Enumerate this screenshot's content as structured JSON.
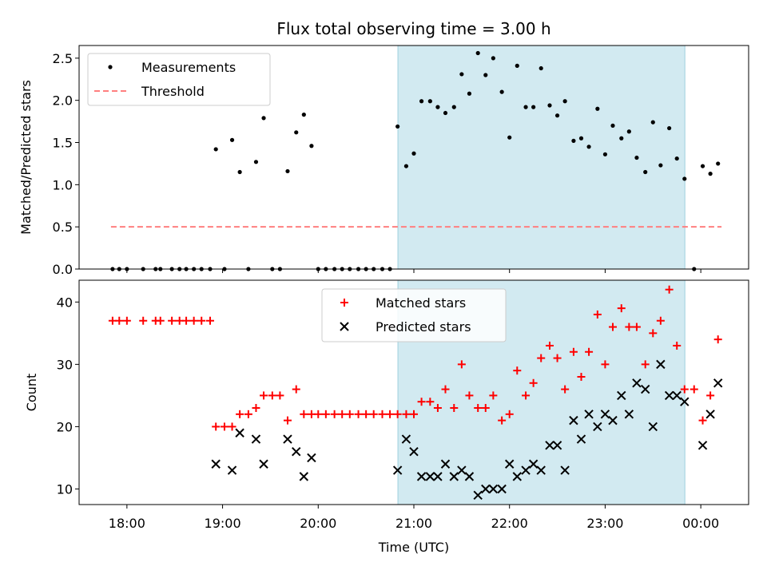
{
  "chart_data": [
    {
      "type": "scatter",
      "title": "Flux total observing time = 3.00 h",
      "ylabel": "Matched/Predicted stars",
      "xlabel": "",
      "ylim": [
        0,
        2.65
      ],
      "xlim": [
        "17:30",
        "00:30"
      ],
      "x_unit": "time (hours, UTC; values past midnight expressed as 24+)",
      "yticks": [
        "0.0",
        "0.5",
        "1.0",
        "1.5",
        "2.0",
        "2.5"
      ],
      "xticks": [
        "18:00",
        "19:00",
        "20:00",
        "21:00",
        "22:00",
        "23:00",
        "00:00"
      ],
      "show_xtick_labels": false,
      "grid": false,
      "legend_position": "upper-left",
      "highlight_span": {
        "x0": "20:50",
        "x1": "23:50",
        "color": "#add8e6"
      },
      "legend": [
        {
          "label": "Measurements",
          "style": "dot",
          "color": "#000000"
        },
        {
          "label": "Threshold",
          "style": "dashed-line",
          "color": "#ff7f7f"
        }
      ],
      "threshold": {
        "value": 0.5,
        "x_start": "17:50",
        "x_end": "00:13",
        "color": "#ff7f7f"
      },
      "series": [
        {
          "name": "Measurements",
          "marker": "dot",
          "color": "#000000",
          "points": [
            [
              17.85,
              0
            ],
            [
              17.92,
              0
            ],
            [
              18.0,
              0
            ],
            [
              18.17,
              0
            ],
            [
              18.3,
              0
            ],
            [
              18.35,
              0
            ],
            [
              18.47,
              0
            ],
            [
              18.55,
              0
            ],
            [
              18.62,
              0
            ],
            [
              18.7,
              0
            ],
            [
              18.78,
              0
            ],
            [
              18.87,
              0
            ],
            [
              18.93,
              1.42
            ],
            [
              19.02,
              0
            ],
            [
              19.1,
              1.53
            ],
            [
              19.18,
              1.15
            ],
            [
              19.27,
              0
            ],
            [
              19.35,
              1.27
            ],
            [
              19.43,
              1.79
            ],
            [
              19.52,
              0
            ],
            [
              19.6,
              0
            ],
            [
              19.68,
              1.16
            ],
            [
              19.77,
              1.62
            ],
            [
              19.85,
              1.83
            ],
            [
              19.93,
              1.46
            ],
            [
              20.0,
              0
            ],
            [
              20.08,
              0
            ],
            [
              20.17,
              0
            ],
            [
              20.25,
              0
            ],
            [
              20.33,
              0
            ],
            [
              20.42,
              0
            ],
            [
              20.5,
              0
            ],
            [
              20.58,
              0
            ],
            [
              20.67,
              0
            ],
            [
              20.75,
              0
            ],
            [
              20.83,
              1.69
            ],
            [
              20.92,
              1.22
            ],
            [
              21.0,
              1.37
            ],
            [
              21.08,
              1.99
            ],
            [
              21.17,
              1.99
            ],
            [
              21.25,
              1.92
            ],
            [
              21.33,
              1.85
            ],
            [
              21.42,
              1.92
            ],
            [
              21.5,
              2.31
            ],
            [
              21.58,
              2.08
            ],
            [
              21.67,
              2.56
            ],
            [
              21.75,
              2.3
            ],
            [
              21.83,
              2.5
            ],
            [
              21.92,
              2.1
            ],
            [
              22.0,
              1.56
            ],
            [
              22.08,
              2.41
            ],
            [
              22.17,
              1.92
            ],
            [
              22.25,
              1.92
            ],
            [
              22.33,
              2.38
            ],
            [
              22.42,
              1.94
            ],
            [
              22.5,
              1.82
            ],
            [
              22.58,
              1.99
            ],
            [
              22.67,
              1.52
            ],
            [
              22.75,
              1.55
            ],
            [
              22.83,
              1.45
            ],
            [
              22.92,
              1.9
            ],
            [
              23.0,
              1.36
            ],
            [
              23.08,
              1.7
            ],
            [
              23.17,
              1.55
            ],
            [
              23.25,
              1.63
            ],
            [
              23.33,
              1.32
            ],
            [
              23.42,
              1.15
            ],
            [
              23.5,
              1.74
            ],
            [
              23.58,
              1.23
            ],
            [
              23.67,
              1.67
            ],
            [
              23.75,
              1.31
            ],
            [
              23.83,
              1.07
            ],
            [
              23.93,
              0
            ],
            [
              24.02,
              1.22
            ],
            [
              24.1,
              1.13
            ],
            [
              24.18,
              1.25
            ]
          ]
        }
      ]
    },
    {
      "type": "scatter",
      "title": "",
      "ylabel": "Count",
      "xlabel": "Time (UTC)",
      "ylim": [
        7.5,
        43.5
      ],
      "xlim": [
        "17:30",
        "00:30"
      ],
      "x_unit": "time (hours, UTC; values past midnight expressed as 24+)",
      "yticks": [
        "10",
        "20",
        "30",
        "40"
      ],
      "xticks": [
        "18:00",
        "19:00",
        "20:00",
        "21:00",
        "22:00",
        "23:00",
        "00:00"
      ],
      "show_xtick_labels": true,
      "grid": false,
      "legend_position": "upper-center",
      "highlight_span": {
        "x0": "20:50",
        "x1": "23:50",
        "color": "#add8e6"
      },
      "legend": [
        {
          "label": "Matched stars",
          "style": "plus",
          "color": "#ff0000"
        },
        {
          "label": "Predicted stars",
          "style": "x",
          "color": "#000000"
        }
      ],
      "series": [
        {
          "name": "Matched stars",
          "marker": "plus",
          "color": "#ff0000",
          "points": [
            [
              17.85,
              37
            ],
            [
              17.92,
              37
            ],
            [
              18.0,
              37
            ],
            [
              18.17,
              37
            ],
            [
              18.3,
              37
            ],
            [
              18.35,
              37
            ],
            [
              18.47,
              37
            ],
            [
              18.55,
              37
            ],
            [
              18.62,
              37
            ],
            [
              18.7,
              37
            ],
            [
              18.78,
              37
            ],
            [
              18.87,
              37
            ],
            [
              18.93,
              20
            ],
            [
              19.02,
              20
            ],
            [
              19.1,
              20
            ],
            [
              19.18,
              22
            ],
            [
              19.27,
              22
            ],
            [
              19.35,
              23
            ],
            [
              19.43,
              25
            ],
            [
              19.52,
              25
            ],
            [
              19.6,
              25
            ],
            [
              19.68,
              21
            ],
            [
              19.77,
              26
            ],
            [
              19.85,
              22
            ],
            [
              19.93,
              22
            ],
            [
              20.0,
              22
            ],
            [
              20.08,
              22
            ],
            [
              20.17,
              22
            ],
            [
              20.25,
              22
            ],
            [
              20.33,
              22
            ],
            [
              20.42,
              22
            ],
            [
              20.5,
              22
            ],
            [
              20.58,
              22
            ],
            [
              20.67,
              22
            ],
            [
              20.75,
              22
            ],
            [
              20.83,
              22
            ],
            [
              20.92,
              22
            ],
            [
              21.0,
              22
            ],
            [
              21.08,
              24
            ],
            [
              21.17,
              24
            ],
            [
              21.25,
              23
            ],
            [
              21.33,
              26
            ],
            [
              21.42,
              23
            ],
            [
              21.5,
              30
            ],
            [
              21.58,
              25
            ],
            [
              21.67,
              23
            ],
            [
              21.75,
              23
            ],
            [
              21.83,
              25
            ],
            [
              21.92,
              21
            ],
            [
              22.0,
              22
            ],
            [
              22.08,
              29
            ],
            [
              22.17,
              25
            ],
            [
              22.25,
              27
            ],
            [
              22.33,
              31
            ],
            [
              22.42,
              33
            ],
            [
              22.5,
              31
            ],
            [
              22.58,
              26
            ],
            [
              22.67,
              32
            ],
            [
              22.75,
              28
            ],
            [
              22.83,
              32
            ],
            [
              22.92,
              38
            ],
            [
              23.0,
              30
            ],
            [
              23.08,
              36
            ],
            [
              23.17,
              39
            ],
            [
              23.25,
              36
            ],
            [
              23.33,
              36
            ],
            [
              23.42,
              30
            ],
            [
              23.5,
              35
            ],
            [
              23.58,
              37
            ],
            [
              23.67,
              42
            ],
            [
              23.75,
              33
            ],
            [
              23.83,
              26
            ],
            [
              23.93,
              26
            ],
            [
              24.02,
              21
            ],
            [
              24.1,
              25
            ],
            [
              24.18,
              34
            ]
          ]
        },
        {
          "name": "Predicted stars",
          "marker": "x",
          "color": "#000000",
          "points": [
            [
              18.93,
              14
            ],
            [
              19.1,
              13
            ],
            [
              19.18,
              19
            ],
            [
              19.35,
              18
            ],
            [
              19.43,
              14
            ],
            [
              19.68,
              18
            ],
            [
              19.77,
              16
            ],
            [
              19.85,
              12
            ],
            [
              19.93,
              15
            ],
            [
              20.83,
              13
            ],
            [
              20.92,
              18
            ],
            [
              21.0,
              16
            ],
            [
              21.08,
              12
            ],
            [
              21.17,
              12
            ],
            [
              21.25,
              12
            ],
            [
              21.33,
              14
            ],
            [
              21.42,
              12
            ],
            [
              21.5,
              13
            ],
            [
              21.58,
              12
            ],
            [
              21.67,
              9
            ],
            [
              21.75,
              10
            ],
            [
              21.83,
              10
            ],
            [
              21.92,
              10
            ],
            [
              22.0,
              14
            ],
            [
              22.08,
              12
            ],
            [
              22.17,
              13
            ],
            [
              22.25,
              14
            ],
            [
              22.33,
              13
            ],
            [
              22.42,
              17
            ],
            [
              22.5,
              17
            ],
            [
              22.58,
              13
            ],
            [
              22.67,
              21
            ],
            [
              22.75,
              18
            ],
            [
              22.83,
              22
            ],
            [
              22.92,
              20
            ],
            [
              23.0,
              22
            ],
            [
              23.08,
              21
            ],
            [
              23.17,
              25
            ],
            [
              23.25,
              22
            ],
            [
              23.33,
              27
            ],
            [
              23.42,
              26
            ],
            [
              23.5,
              20
            ],
            [
              23.58,
              30
            ],
            [
              23.67,
              25
            ],
            [
              23.75,
              25
            ],
            [
              23.83,
              24
            ],
            [
              24.02,
              17
            ],
            [
              24.1,
              22
            ],
            [
              24.18,
              27
            ]
          ]
        }
      ]
    }
  ]
}
